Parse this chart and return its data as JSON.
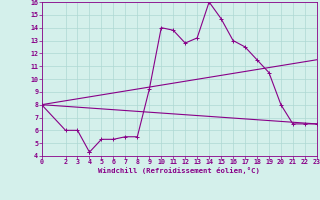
{
  "xlabel": "Windchill (Refroidissement éolien,°C)",
  "bg_color": "#d4f0eb",
  "grid_color": "#aed8d3",
  "line_color": "#880088",
  "xlim": [
    0,
    23
  ],
  "ylim": [
    4,
    16
  ],
  "xticks": [
    0,
    2,
    3,
    4,
    5,
    6,
    7,
    8,
    9,
    10,
    11,
    12,
    13,
    14,
    15,
    16,
    17,
    18,
    19,
    20,
    21,
    22,
    23
  ],
  "yticks": [
    4,
    5,
    6,
    7,
    8,
    9,
    10,
    11,
    12,
    13,
    14,
    15,
    16
  ],
  "line1_x": [
    0,
    2,
    3,
    4,
    4,
    5,
    6,
    7,
    8,
    9,
    10,
    11,
    12,
    13,
    14,
    15,
    16,
    17,
    18,
    19,
    20,
    21,
    22,
    23
  ],
  "line1_y": [
    8.0,
    6.0,
    6.0,
    4.3,
    4.3,
    5.3,
    5.3,
    5.5,
    5.5,
    9.2,
    14.0,
    13.8,
    12.8,
    13.2,
    16.0,
    14.7,
    13.0,
    12.5,
    11.5,
    10.5,
    8.0,
    6.5,
    6.5,
    6.5
  ],
  "line2_x": [
    0,
    23
  ],
  "line2_y": [
    8.0,
    6.5
  ],
  "line3_x": [
    0,
    23
  ],
  "line3_y": [
    8.0,
    11.5
  ]
}
